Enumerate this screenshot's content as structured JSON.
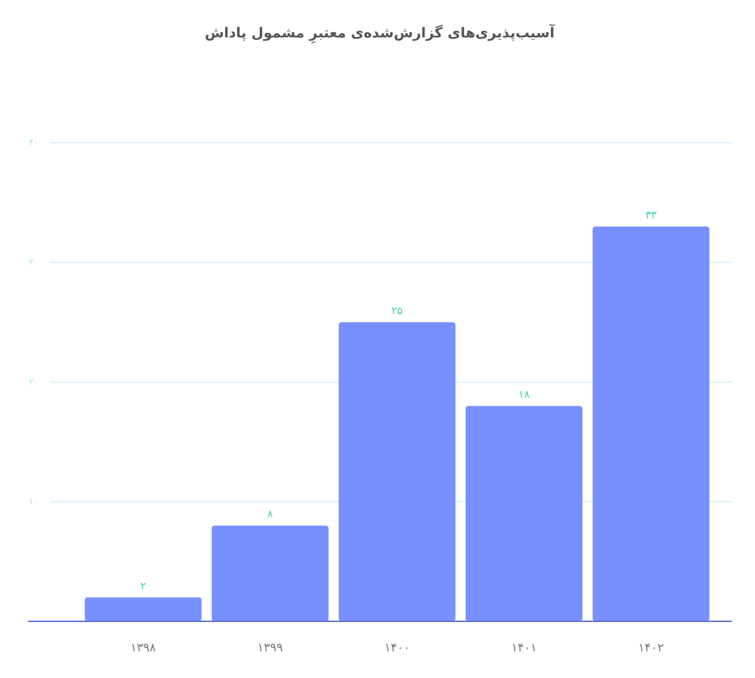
{
  "chart_data": {
    "type": "bar",
    "title": "آسیب‌پذیری‌های گزارش‌شده‌ی معتبرِ مشمول پاداش",
    "categories": [
      "۱۳۹۸",
      "۱۳۹۹",
      "۱۴۰۰",
      "۱۴۰۱",
      "۱۴۰۲"
    ],
    "values": [
      2,
      8,
      25,
      18,
      33
    ],
    "value_labels": [
      "۲",
      "۸",
      "۲۵",
      "۱۸",
      "۳۳"
    ],
    "color": "#788ffe",
    "ylim": [
      0,
      40
    ],
    "yticks": [
      {
        "value": 10,
        "label": "۱۰"
      },
      {
        "value": 20,
        "label": "۲۰"
      },
      {
        "value": 30,
        "label": "۳۰"
      },
      {
        "value": 40,
        "label": "۴۰"
      }
    ],
    "grid": true
  }
}
